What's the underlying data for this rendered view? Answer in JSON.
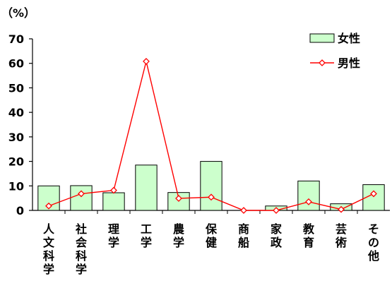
{
  "chart_data": {
    "type": "bar",
    "unit_label": "（%）",
    "categories": [
      "人文科学",
      "社会科学",
      "理学",
      "工学",
      "農学",
      "保健",
      "商船",
      "家政",
      "教育",
      "芸術",
      "その他"
    ],
    "ylim": [
      0,
      70
    ],
    "yticks": [
      0,
      10,
      20,
      30,
      40,
      50,
      60,
      70
    ],
    "grid": false,
    "legend_position": "top-right",
    "series": [
      {
        "name": "女性",
        "mark": "bar",
        "color": "#ccffcc",
        "values": [
          10.0,
          10.1,
          7.2,
          18.5,
          7.3,
          20.0,
          0.0,
          1.8,
          12.0,
          2.7,
          10.5
        ]
      },
      {
        "name": "男性",
        "mark": "line",
        "color": "#ff0000",
        "values": [
          1.8,
          6.8,
          8.2,
          60.8,
          4.9,
          5.4,
          0.0,
          0.0,
          3.5,
          0.4,
          6.8
        ]
      }
    ]
  }
}
